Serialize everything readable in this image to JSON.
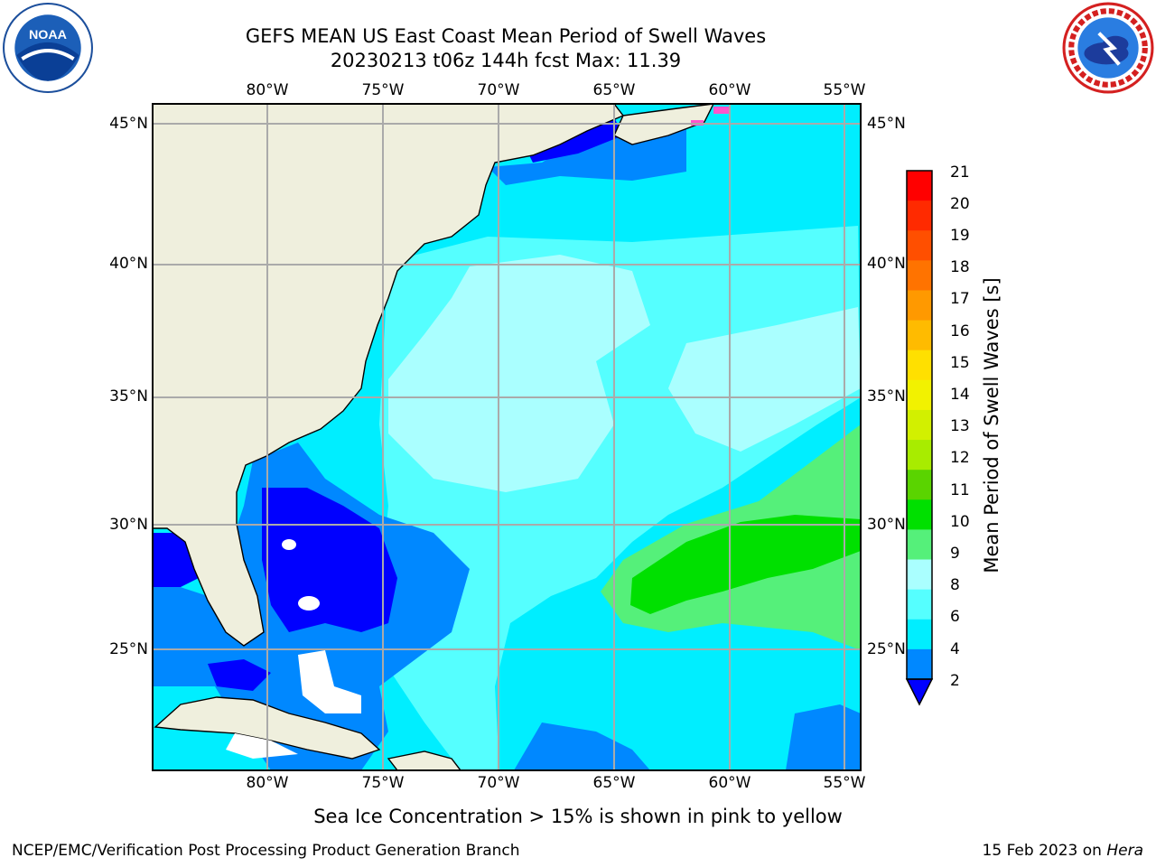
{
  "header": {
    "title_line1": "GEFS MEAN US East Coast Mean Period of Swell Waves",
    "title_line2": "20230213 t06z 144h fcst   Max: 11.39"
  },
  "logos": {
    "left": {
      "name": "noaa-logo",
      "text": "NOAA"
    },
    "right": {
      "name": "national-weather-service-logo",
      "text": "NATIONAL WEATHER SERVICE"
    }
  },
  "map": {
    "lon_labels": [
      "80°W",
      "75°W",
      "70°W",
      "65°W",
      "60°W",
      "55°W"
    ],
    "lat_labels": [
      "45°N",
      "40°N",
      "35°N",
      "30°N",
      "25°N"
    ]
  },
  "colorbar": {
    "title": "Mean Period of Swell Waves [s]",
    "labels": [
      "21",
      "20",
      "19",
      "18",
      "17",
      "16",
      "15",
      "14",
      "13",
      "12",
      "11",
      "10",
      "9",
      "8",
      "6",
      "4",
      "2"
    ],
    "colors": [
      "#ff0000",
      "#ff2a00",
      "#ff4f00",
      "#ff7300",
      "#ff9900",
      "#ffbb00",
      "#ffe000",
      "#f2f200",
      "#d2f000",
      "#a8ec00",
      "#5ad400",
      "#00e000",
      "#55f07a",
      "#aaffff",
      "#55ffff",
      "#00eeff",
      "#0088ff",
      "#0000ff"
    ]
  },
  "caption": "Sea Ice Concentration > 15% is shown in pink to yellow",
  "footer": {
    "left": "NCEP/EMC/Verification Post Processing Product Generation Branch",
    "right_date": "15 Feb 2023 on ",
    "right_host": "Hera"
  }
}
